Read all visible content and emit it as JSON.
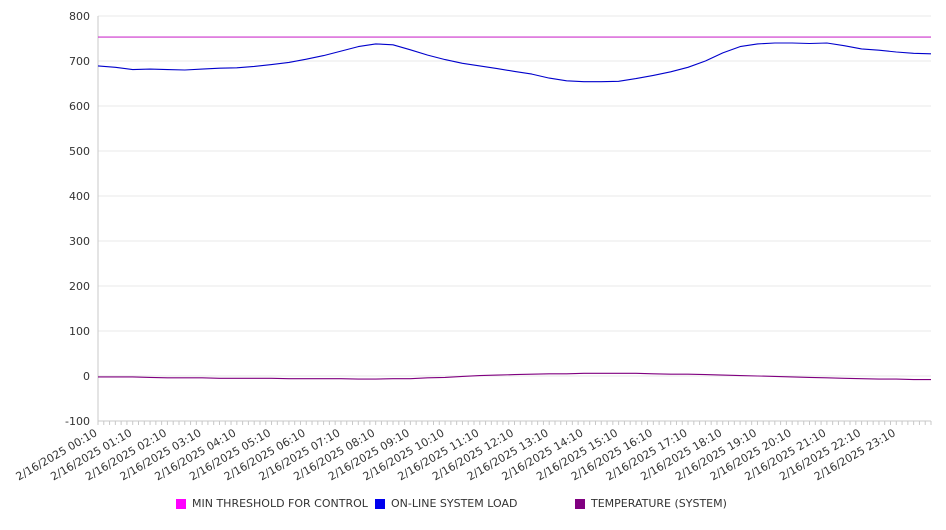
{
  "chart_data": {
    "type": "line",
    "title": "",
    "xlabel": "",
    "ylabel": "",
    "ylim": [
      -100,
      800
    ],
    "y_ticks": [
      "800",
      "700",
      "600",
      "500",
      "400",
      "300",
      "200",
      "100",
      "0",
      "-100"
    ],
    "x_tick_labels": [
      "2/16/2025 00:10",
      "2/16/2025 01:10",
      "2/16/2025 02:10",
      "2/16/2025 03:10",
      "2/16/2025 04:10",
      "2/16/2025 05:10",
      "2/16/2025 06:10",
      "2/16/2025 07:10",
      "2/16/2025 08:10",
      "2/16/2025 09:10",
      "2/16/2025 10:10",
      "2/16/2025 11:10",
      "2/16/2025 12:10",
      "2/16/2025 13:10",
      "2/16/2025 14:10",
      "2/16/2025 15:10",
      "2/16/2025 16:10",
      "2/16/2025 17:10",
      "2/16/2025 18:10",
      "2/16/2025 19:10",
      "2/16/2025 20:10",
      "2/16/2025 21:10",
      "2/16/2025 22:10",
      "2/16/2025 23:10"
    ],
    "grid": true,
    "legend_position": "bottom",
    "x_hours": [
      0,
      0.5,
      1,
      1.5,
      2,
      2.5,
      3,
      3.5,
      4,
      4.5,
      5,
      5.5,
      6,
      6.5,
      7,
      7.5,
      8,
      8.5,
      9,
      9.5,
      10,
      10.5,
      11,
      11.5,
      12,
      12.5,
      13,
      13.5,
      14,
      14.5,
      15,
      15.5,
      16,
      16.5,
      17,
      17.5,
      18,
      18.5,
      19,
      19.5,
      20,
      20.5,
      21,
      21.5,
      22,
      22.5,
      23,
      23.5,
      24
    ],
    "series": [
      {
        "name": "MIN THRESHOLD FOR CONTROL",
        "color": "#cc33cc",
        "values": [
          753,
          753,
          753,
          753,
          753,
          753,
          753,
          753,
          753,
          753,
          753,
          753,
          753,
          753,
          753,
          753,
          753,
          753,
          753,
          753,
          753,
          753,
          753,
          753,
          753,
          753,
          753,
          753,
          753,
          753,
          753,
          753,
          753,
          753,
          753,
          753,
          753,
          753,
          753,
          753,
          753,
          753,
          753,
          753,
          753,
          753,
          753,
          753,
          753
        ]
      },
      {
        "name": "ON-LINE SYSTEM LOAD",
        "color": "#0000cc",
        "values": [
          689,
          686,
          681,
          682,
          681,
          680,
          682,
          684,
          685,
          688,
          692,
          697,
          704,
          712,
          722,
          732,
          738,
          736,
          725,
          713,
          703,
          695,
          689,
          683,
          677,
          671,
          662,
          656,
          654,
          654,
          655,
          661,
          668,
          676,
          686,
          700,
          718,
          732,
          738,
          740,
          740,
          739,
          740,
          734,
          727,
          724,
          720,
          717,
          716
        ]
      },
      {
        "name": "TEMPERATURE (SYSTEM)",
        "color": "#800080",
        "values": [
          -2,
          -2,
          -2,
          -3,
          -4,
          -4,
          -4,
          -5,
          -5,
          -5,
          -5,
          -6,
          -6,
          -6,
          -6,
          -7,
          -7,
          -6,
          -6,
          -4,
          -3,
          -1,
          1,
          2,
          3,
          4,
          5,
          5,
          6,
          6,
          6,
          6,
          5,
          4,
          4,
          3,
          2,
          1,
          0,
          -1,
          -2,
          -3,
          -4,
          -5,
          -6,
          -7,
          -7,
          -8,
          -8
        ]
      }
    ]
  }
}
